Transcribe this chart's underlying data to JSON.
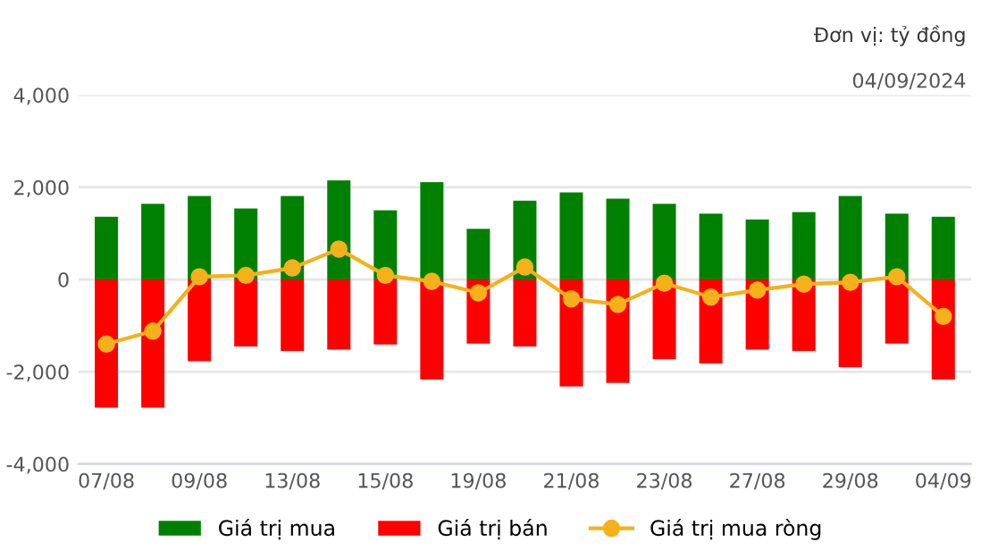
{
  "chart_data": {
    "type": "bar",
    "annotations": [
      "Đơn vị: tỷ đồng",
      "04/09/2024"
    ],
    "categories": [
      "07/08",
      null,
      "09/08",
      null,
      "13/08",
      null,
      "15/08",
      null,
      "19/08",
      null,
      "21/08",
      null,
      "23/08",
      null,
      "27/08",
      null,
      "29/08",
      null,
      "04/09"
    ],
    "series": [
      {
        "name": "Giá trị mua",
        "color": "#008000",
        "values": [
          1360,
          1640,
          1810,
          1540,
          1810,
          2150,
          1500,
          2110,
          1100,
          1710,
          1890,
          1750,
          1640,
          1430,
          1300,
          1460,
          1810,
          1430,
          1360
        ]
      },
      {
        "name": "Giá trị bán",
        "color": "#ff0000",
        "values": [
          -2780,
          -2780,
          -1770,
          -1450,
          -1550,
          -1520,
          -1410,
          -2170,
          -1390,
          -1450,
          -2320,
          -2240,
          -1730,
          -1820,
          -1520,
          -1550,
          -1900,
          -1390,
          -2170
        ]
      },
      {
        "name": "Giá trị mua ròng",
        "color": "#f5b11a",
        "type": "line",
        "values": [
          -1400,
          -1120,
          60,
          90,
          250,
          660,
          90,
          -40,
          -290,
          270,
          -420,
          -540,
          -80,
          -380,
          -230,
          -100,
          -60,
          60,
          -800
        ]
      }
    ],
    "ylim": [
      -4000,
      4000
    ],
    "yticks": [
      {
        "value": -4000,
        "label": "-4,000"
      },
      {
        "value": -2000,
        "label": "-2,000"
      },
      0,
      {
        "value": 2000,
        "label": "2,000"
      },
      {
        "value": 4000,
        "label": "4,000"
      }
    ],
    "grid": "y",
    "stacked": true,
    "legend": "bottom",
    "marker": "circle"
  }
}
